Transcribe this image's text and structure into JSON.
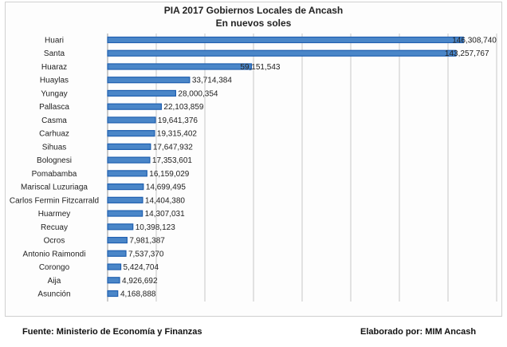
{
  "chart_data": {
    "type": "bar",
    "orientation": "horizontal",
    "title": "PIA 2017 Gobiernos Locales de Ancash",
    "subtitle": "En nuevos soles",
    "xlabel": "",
    "ylabel": "",
    "xlim": [
      0,
      160000000
    ],
    "grid": true,
    "bar_color": "#4a86c8",
    "bar_edge": "#1f5fb0",
    "categories": [
      "Huari",
      "Santa",
      "Huaraz",
      "Huaylas",
      "Yungay",
      "Pallasca",
      "Casma",
      "Carhuaz",
      "Sihuas",
      "Bolognesi",
      "Pomabamba",
      "Mariscal Luzuriaga",
      "Carlos Fermin Fitzcarrald",
      "Huarmey",
      "Recuay",
      "Ocros",
      "Antonio Raimondi",
      "Corongo",
      "Aija",
      "Asunción"
    ],
    "values": [
      146308740,
      143257767,
      59151543,
      33714384,
      28000354,
      22103859,
      19641376,
      19315402,
      17647932,
      17353601,
      16159029,
      14699495,
      14404380,
      14307031,
      10398123,
      7981387,
      7537370,
      5424704,
      4926692,
      4168888
    ],
    "data_labels": [
      "146,308,740",
      "143,257,767",
      "59,151,543",
      "33,714,384",
      "28,000,354",
      "22,103,859",
      "19,641,376",
      "19,315,402",
      "17,647,932",
      "17,353,601",
      "16,159,029",
      "14,699,495",
      "14,404,380",
      "14,307,031",
      "10,398,123",
      "7,981,387",
      "7,537,370",
      "5,424,704",
      "4,926,692",
      "4,168,888"
    ]
  },
  "footer": {
    "source": "Fuente: Ministerio de Economía y Finanzas",
    "author": "Elaborado por: MIM Ancash"
  }
}
